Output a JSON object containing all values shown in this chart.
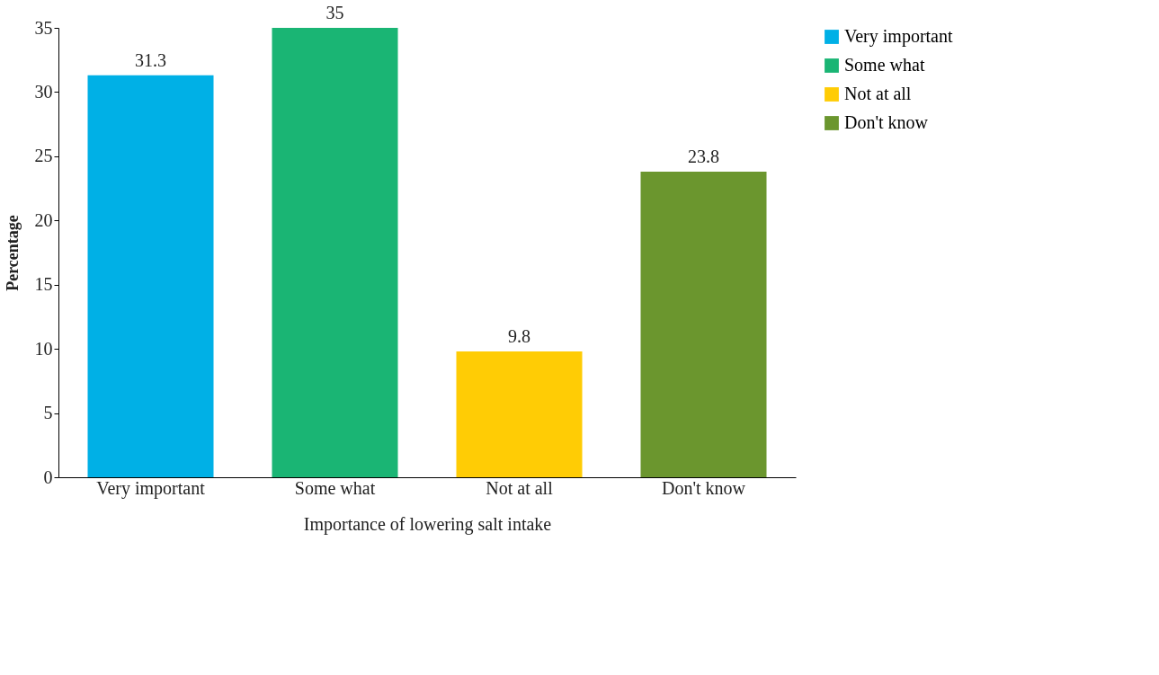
{
  "chart_data": {
    "type": "bar",
    "xlabel": "Importance of lowering salt intake",
    "ylabel": "Percentage",
    "categories": [
      "Very important",
      "Some what",
      "Not at all",
      "Don't know"
    ],
    "series": [
      {
        "name": "Very important",
        "color": "#00b0e6",
        "values": [
          31.3,
          null,
          null,
          null
        ]
      },
      {
        "name": "Some what",
        "color": "#1ab574",
        "values": [
          null,
          35,
          null,
          null
        ]
      },
      {
        "name": "Not at all",
        "color": "#ffcc05",
        "values": [
          null,
          null,
          9.8,
          null
        ]
      },
      {
        "name": "Don't know",
        "color": "#6b962e",
        "values": [
          null,
          null,
          null,
          23.8
        ]
      }
    ],
    "ylim": [
      0,
      35
    ],
    "yticks": [
      0,
      5,
      10,
      15,
      20,
      25,
      30,
      35
    ],
    "data_labels": true,
    "grid": false,
    "legend": "right"
  }
}
